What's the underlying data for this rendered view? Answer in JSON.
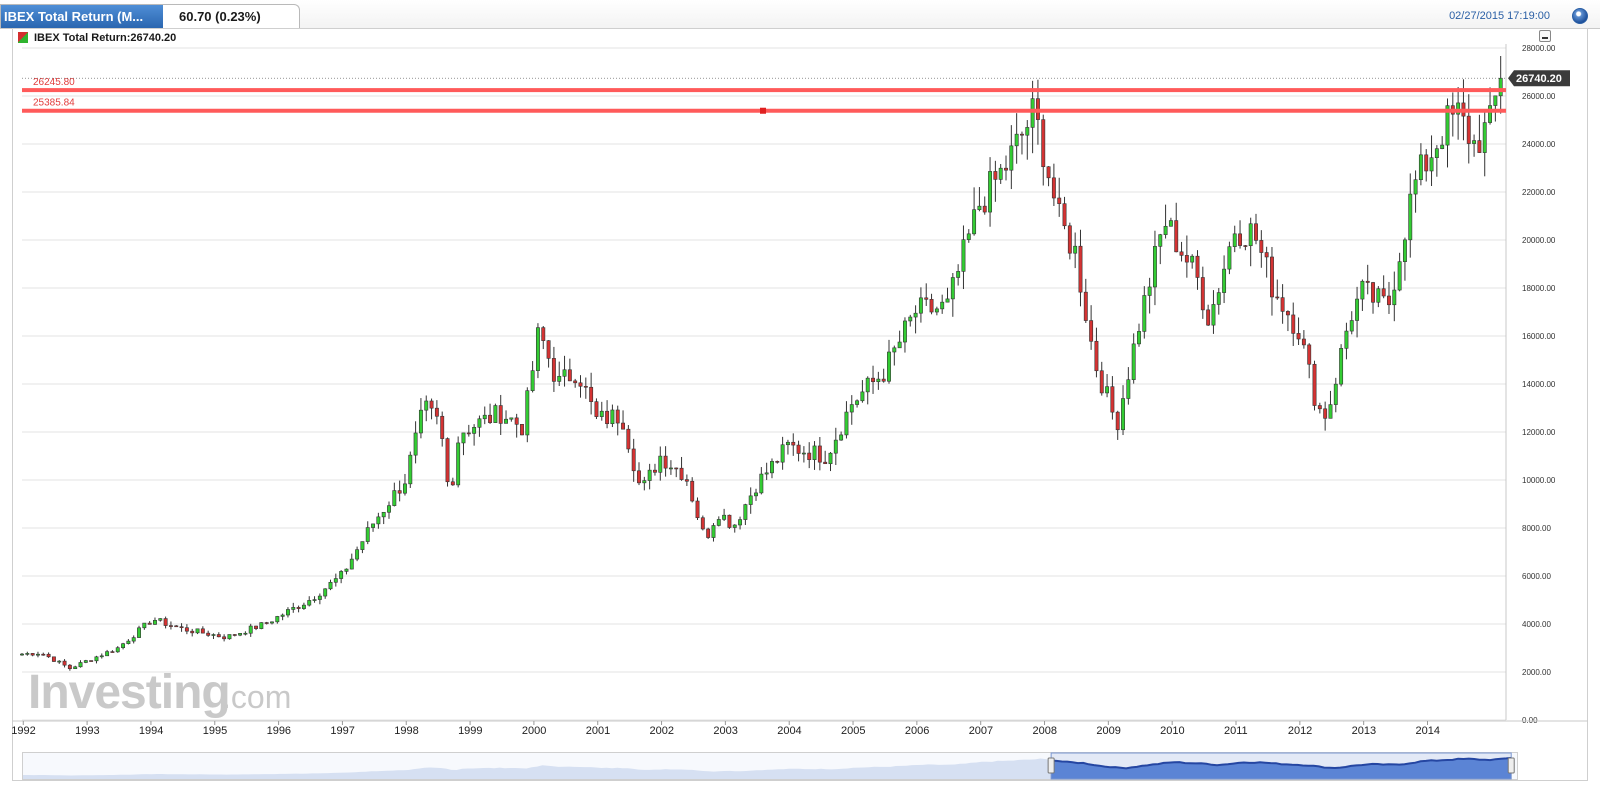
{
  "header": {
    "tab_name": "IBEX Total Return (M...",
    "tab_change": "60.70 (0.23%)",
    "datetime": "02/27/2015 17:19:00"
  },
  "legend": {
    "label": "IBEX Total Return:26740.20"
  },
  "watermark": {
    "main": "Investing",
    "suffix": ".com"
  },
  "colors": {
    "up": "#33cc33",
    "down": "#d43333",
    "line": "#ff5a5a",
    "accent": "#2a66b0"
  },
  "chart_data": {
    "type": "candlestick",
    "title": "IBEX Total Return",
    "last_value": "26740.20",
    "last_value_num": 26740.2,
    "ylim": [
      0,
      28000
    ],
    "yticks": [
      {
        "v": 0,
        "label": "0.00"
      },
      {
        "v": 2000,
        "label": "2000.00"
      },
      {
        "v": 4000,
        "label": "4000.00"
      },
      {
        "v": 6000,
        "label": "6000.00"
      },
      {
        "v": 8000,
        "label": "8000.00"
      },
      {
        "v": 10000,
        "label": "10000.00"
      },
      {
        "v": 12000,
        "label": "12000.00"
      },
      {
        "v": 14000,
        "label": "14000.00"
      },
      {
        "v": 16000,
        "label": "16000.00"
      },
      {
        "v": 18000,
        "label": "18000.00"
      },
      {
        "v": 20000,
        "label": "20000.00"
      },
      {
        "v": 22000,
        "label": "22000.00"
      },
      {
        "v": 24000,
        "label": "24000.00"
      },
      {
        "v": 26000,
        "label": "26000.00"
      },
      {
        "v": 28000,
        "label": "28000.00"
      }
    ],
    "xticks": [
      {
        "year": 1992,
        "label": "1992"
      },
      {
        "year": 1993,
        "label": "1993"
      },
      {
        "year": 1994,
        "label": "1994"
      },
      {
        "year": 1995,
        "label": "1995"
      },
      {
        "year": 1996,
        "label": "1996"
      },
      {
        "year": 1997,
        "label": "1997"
      },
      {
        "year": 1998,
        "label": "1998"
      },
      {
        "year": 1999,
        "label": "1999"
      },
      {
        "year": 2000,
        "label": "2000"
      },
      {
        "year": 2001,
        "label": "2001"
      },
      {
        "year": 2002,
        "label": "2002"
      },
      {
        "year": 2003,
        "label": "2003"
      },
      {
        "year": 2004,
        "label": "2004"
      },
      {
        "year": 2005,
        "label": "2005"
      },
      {
        "year": 2006,
        "label": "2006"
      },
      {
        "year": 2007,
        "label": "2007"
      },
      {
        "year": 2008,
        "label": "2008"
      },
      {
        "year": 2009,
        "label": "2009"
      },
      {
        "year": 2010,
        "label": "2010"
      },
      {
        "year": 2011,
        "label": "2011"
      },
      {
        "year": 2012,
        "label": "2012"
      },
      {
        "year": 2013,
        "label": "2013"
      },
      {
        "year": 2014,
        "label": "2014"
      }
    ],
    "hlines": [
      {
        "value": 26245.8,
        "label": "26245.80"
      },
      {
        "value": 25385.84,
        "label": "25385.84"
      }
    ],
    "anchors": [
      {
        "t": 1992.0,
        "v": 2750
      },
      {
        "t": 1992.3,
        "v": 2800
      },
      {
        "t": 1992.75,
        "v": 2150
      },
      {
        "t": 1993.0,
        "v": 2450
      },
      {
        "t": 1993.5,
        "v": 3000
      },
      {
        "t": 1994.05,
        "v": 4200
      },
      {
        "t": 1994.5,
        "v": 3800
      },
      {
        "t": 1995.2,
        "v": 3450
      },
      {
        "t": 1995.8,
        "v": 4000
      },
      {
        "t": 1996.5,
        "v": 5000
      },
      {
        "t": 1997.0,
        "v": 6000
      },
      {
        "t": 1997.5,
        "v": 8200
      },
      {
        "t": 1998.0,
        "v": 10000
      },
      {
        "t": 1998.3,
        "v": 13000
      },
      {
        "t": 1998.55,
        "v": 12300
      },
      {
        "t": 1998.7,
        "v": 9200
      },
      {
        "t": 1998.85,
        "v": 12000
      },
      {
        "t": 1999.5,
        "v": 12800
      },
      {
        "t": 1999.85,
        "v": 12200
      },
      {
        "t": 2000.1,
        "v": 16200
      },
      {
        "t": 2000.4,
        "v": 14000
      },
      {
        "t": 2000.7,
        "v": 14600
      },
      {
        "t": 2001.0,
        "v": 12500
      },
      {
        "t": 2001.4,
        "v": 12700
      },
      {
        "t": 2001.7,
        "v": 9500
      },
      {
        "t": 2002.0,
        "v": 11000
      },
      {
        "t": 2002.4,
        "v": 10200
      },
      {
        "t": 2002.7,
        "v": 7500
      },
      {
        "t": 2002.9,
        "v": 8700
      },
      {
        "t": 2003.15,
        "v": 8100
      },
      {
        "t": 2003.5,
        "v": 9800
      },
      {
        "t": 2004.0,
        "v": 11400
      },
      {
        "t": 2004.6,
        "v": 11000
      },
      {
        "t": 2005.0,
        "v": 13200
      },
      {
        "t": 2005.5,
        "v": 14500
      },
      {
        "t": 2006.0,
        "v": 17000
      },
      {
        "t": 2006.5,
        "v": 17200
      },
      {
        "t": 2007.0,
        "v": 21500
      },
      {
        "t": 2007.4,
        "v": 23000
      },
      {
        "t": 2007.85,
        "v": 25300
      },
      {
        "t": 2008.0,
        "v": 23800
      },
      {
        "t": 2008.25,
        "v": 20800
      },
      {
        "t": 2008.5,
        "v": 19500
      },
      {
        "t": 2008.8,
        "v": 15000
      },
      {
        "t": 2009.15,
        "v": 12300
      },
      {
        "t": 2009.5,
        "v": 16500
      },
      {
        "t": 2009.9,
        "v": 20800
      },
      {
        "t": 2010.4,
        "v": 18500
      },
      {
        "t": 2010.6,
        "v": 16700
      },
      {
        "t": 2011.0,
        "v": 20500
      },
      {
        "t": 2011.3,
        "v": 20300
      },
      {
        "t": 2011.6,
        "v": 18000
      },
      {
        "t": 2012.0,
        "v": 16300
      },
      {
        "t": 2012.3,
        "v": 13000
      },
      {
        "t": 2012.45,
        "v": 12700
      },
      {
        "t": 2012.8,
        "v": 16800
      },
      {
        "t": 2013.0,
        "v": 17800
      },
      {
        "t": 2013.4,
        "v": 17200
      },
      {
        "t": 2013.8,
        "v": 22200
      },
      {
        "t": 2014.3,
        "v": 24800
      },
      {
        "t": 2014.5,
        "v": 25200
      },
      {
        "t": 2014.75,
        "v": 24000
      },
      {
        "t": 2015.0,
        "v": 24800
      },
      {
        "t": 2015.16,
        "v": 26740
      }
    ],
    "navigator_window": [
      2008.0,
      2015.16
    ]
  }
}
